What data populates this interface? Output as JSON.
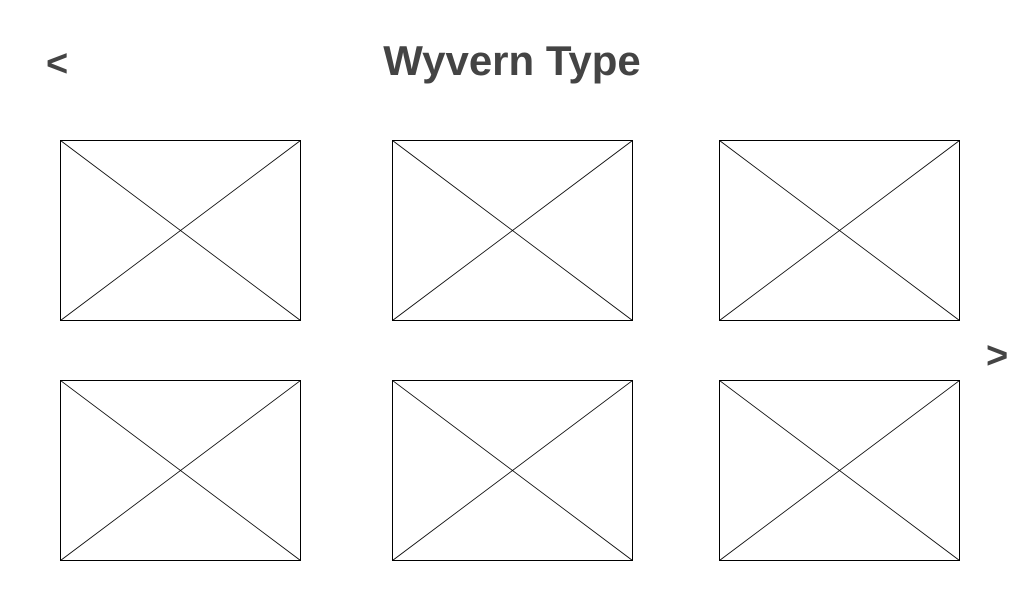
{
  "page": {
    "title": "Wyvern Type"
  },
  "navigation": {
    "prev_label": "<",
    "next_label": ">"
  },
  "gallery": {
    "item_icon": "image-placeholder-icon",
    "items": [
      {
        "placeholder": "image-placeholder"
      },
      {
        "placeholder": "image-placeholder"
      },
      {
        "placeholder": "image-placeholder"
      },
      {
        "placeholder": "image-placeholder"
      },
      {
        "placeholder": "image-placeholder"
      },
      {
        "placeholder": "image-placeholder"
      }
    ]
  },
  "colors": {
    "text": "#444444",
    "stroke": "#000000",
    "background": "#ffffff"
  }
}
